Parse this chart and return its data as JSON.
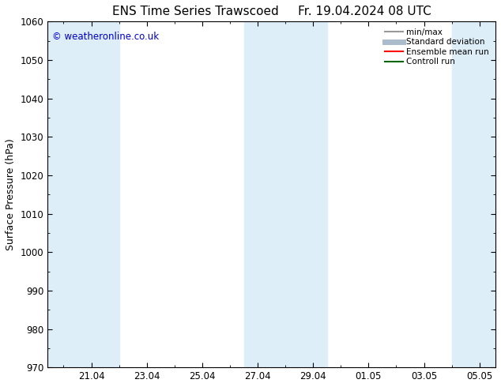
{
  "title_left": "ENS Time Series Trawscoed",
  "title_right": "Fr. 19.04.2024 08 UTC",
  "ylabel": "Surface Pressure (hPa)",
  "ylim": [
    970,
    1060
  ],
  "yticks": [
    970,
    980,
    990,
    1000,
    1010,
    1020,
    1030,
    1040,
    1050,
    1060
  ],
  "xlim_start": 19.42,
  "xlim_end": 35.58,
  "xtick_labels": [
    "21.04",
    "23.04",
    "25.04",
    "27.04",
    "29.04",
    "01.05",
    "03.05",
    "05.05"
  ],
  "xtick_positions": [
    21,
    23,
    25,
    27,
    29,
    31,
    33,
    35
  ],
  "shaded_bands": [
    {
      "x_start": 19.42,
      "x_end": 22.0
    },
    {
      "x_start": 26.5,
      "x_end": 29.5
    },
    {
      "x_start": 34.0,
      "x_end": 35.58
    }
  ],
  "band_color": "#ddeef8",
  "watermark": "© weatheronline.co.uk",
  "watermark_color": "#0000cc",
  "legend_items": [
    {
      "label": "min/max",
      "color": "#999999",
      "linewidth": 1.5
    },
    {
      "label": "Standard deviation",
      "color": "#aabbcc",
      "linewidth": 5
    },
    {
      "label": "Ensemble mean run",
      "color": "#ff0000",
      "linewidth": 1.5
    },
    {
      "label": "Controll run",
      "color": "#006600",
      "linewidth": 1.5
    }
  ],
  "background_color": "#ffffff",
  "spine_color": "#000000",
  "title_fontsize": 11,
  "tick_fontsize": 8.5,
  "ylabel_fontsize": 9,
  "legend_fontsize": 7.5
}
